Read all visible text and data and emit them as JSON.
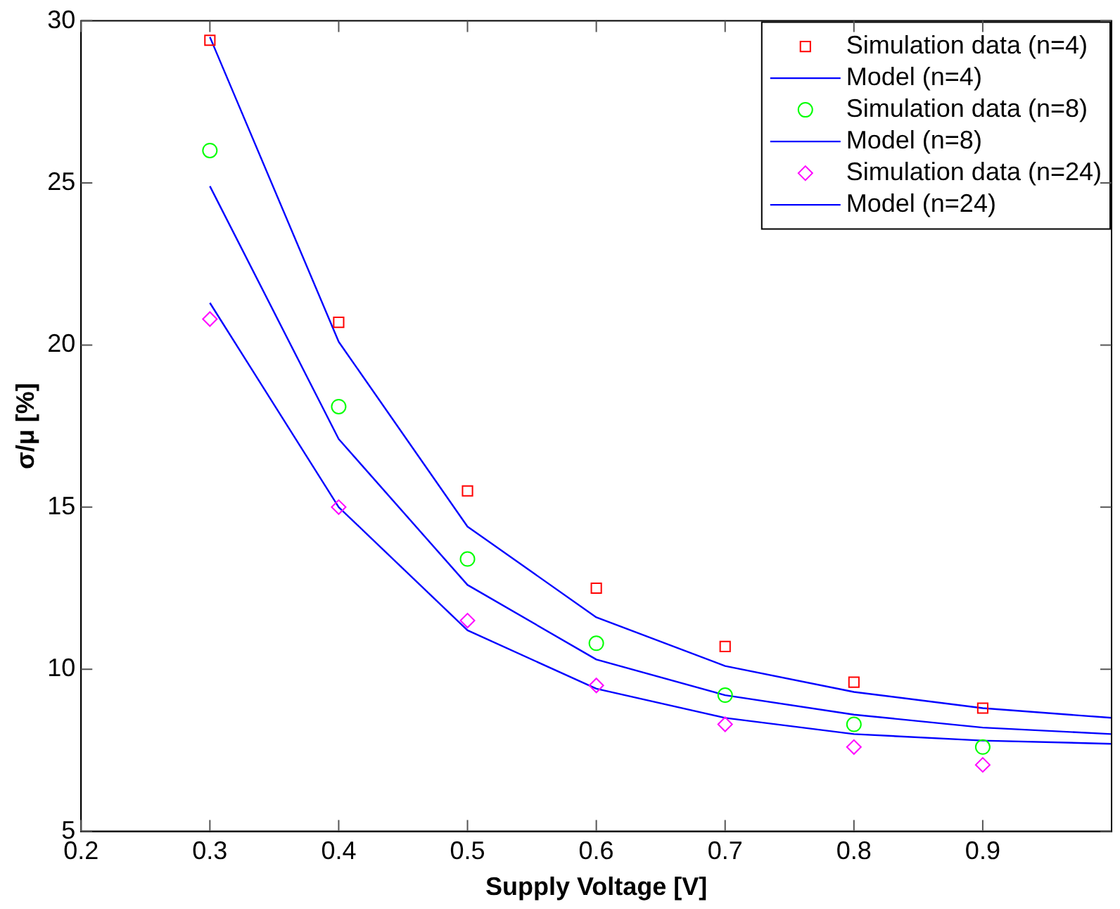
{
  "chart_data": {
    "type": "scatter",
    "xlabel": "Supply Voltage [V]",
    "ylabel": "σ/μ [%]",
    "xlim": [
      0.2,
      1.0
    ],
    "xticks": [
      0.2,
      0.3,
      0.4,
      0.5,
      0.6,
      0.7,
      0.8,
      0.9
    ],
    "ylim": [
      5,
      30
    ],
    "yticks": [
      5,
      10,
      15,
      20,
      25,
      30
    ],
    "grid": false,
    "legend": "top right",
    "series": [
      {
        "name": "Simulation data (n=4)",
        "marker": "square",
        "color": "#ff0000",
        "x": [
          0.3,
          0.4,
          0.5,
          0.6,
          0.7,
          0.8,
          0.9
        ],
        "values": [
          29.4,
          20.7,
          15.5,
          12.5,
          10.7,
          9.6,
          8.8
        ]
      },
      {
        "name": "Model (n=4)",
        "type": "line",
        "marker": "none",
        "color": "#0000ff",
        "x": [
          0.3,
          0.4,
          0.5,
          0.6,
          0.7,
          0.8,
          0.9,
          1.0
        ],
        "values": [
          29.5,
          20.1,
          14.4,
          11.6,
          10.1,
          9.3,
          8.8,
          8.5
        ]
      },
      {
        "name": "Simulation data (n=8)",
        "marker": "circle",
        "color": "#00ff00",
        "x": [
          0.3,
          0.4,
          0.5,
          0.6,
          0.7,
          0.8,
          0.9
        ],
        "values": [
          26.0,
          18.1,
          13.4,
          10.8,
          9.2,
          8.3,
          7.6
        ]
      },
      {
        "name": "Model (n=8)",
        "type": "line",
        "marker": "none",
        "color": "#0000ff",
        "x": [
          0.3,
          0.4,
          0.5,
          0.6,
          0.7,
          0.8,
          0.9,
          1.0
        ],
        "values": [
          24.9,
          17.1,
          12.6,
          10.3,
          9.2,
          8.6,
          8.2,
          8.0
        ]
      },
      {
        "name": "Simulation data (n=24)",
        "marker": "diamond",
        "color": "#ff00ff",
        "x": [
          0.3,
          0.4,
          0.5,
          0.6,
          0.7,
          0.8,
          0.9
        ],
        "values": [
          20.8,
          15.0,
          11.5,
          9.5,
          8.3,
          7.6,
          7.05
        ]
      },
      {
        "name": "Model (n=24)",
        "type": "line",
        "marker": "none",
        "color": "#0000ff",
        "x": [
          0.3,
          0.4,
          0.5,
          0.6,
          0.7,
          0.8,
          0.9,
          1.0
        ],
        "values": [
          21.3,
          15.0,
          11.2,
          9.4,
          8.5,
          8.0,
          7.8,
          7.7
        ]
      }
    ]
  }
}
